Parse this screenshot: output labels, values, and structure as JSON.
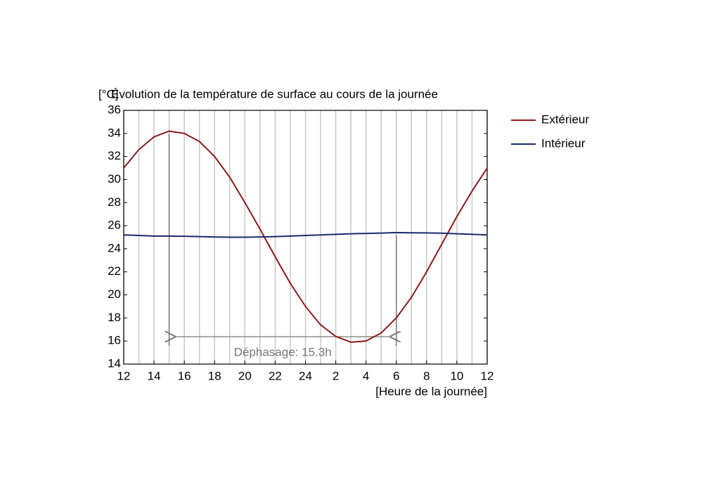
{
  "chart_data": {
    "type": "line",
    "title": "Évolution de la température de surface au cours de la journée",
    "y_label": "[°C]",
    "x_label": "[Heure de la journée]",
    "annotation": "Déphasage: 15.3h",
    "x": [
      12,
      13,
      14,
      15,
      16,
      17,
      18,
      19,
      20,
      21,
      22,
      23,
      24,
      25,
      26,
      27,
      28,
      29,
      30,
      31,
      32,
      33,
      34,
      35,
      36
    ],
    "series": [
      {
        "name": "Extérieur",
        "color": "#8b1a1a",
        "values": [
          31.0,
          32.6,
          33.7,
          34.2,
          34.0,
          33.3,
          32.0,
          30.2,
          28.0,
          25.7,
          23.3,
          21.0,
          19.0,
          17.4,
          16.4,
          15.9,
          16.0,
          16.7,
          18.0,
          19.8,
          22.0,
          24.4,
          26.8,
          29.0,
          31.0
        ]
      },
      {
        "name": "Intérieur",
        "color": "#1a2a6c",
        "values": [
          25.2,
          25.15,
          25.1,
          25.1,
          25.08,
          25.05,
          25.02,
          25.0,
          25.0,
          25.02,
          25.05,
          25.1,
          25.15,
          25.2,
          25.25,
          25.3,
          25.33,
          25.36,
          25.4,
          25.38,
          25.37,
          25.35,
          25.3,
          25.25,
          25.2
        ]
      }
    ],
    "xlim": [
      12,
      36
    ],
    "ylim": [
      14,
      36
    ],
    "xticks": [
      12,
      14,
      16,
      18,
      20,
      22,
      24,
      {
        "value": 26,
        "label": "2"
      },
      {
        "value": 28,
        "label": "4"
      },
      {
        "value": 30,
        "label": "6"
      },
      {
        "value": 32,
        "label": "8"
      },
      {
        "value": 34,
        "label": "10"
      },
      {
        "value": 36,
        "label": "12"
      }
    ],
    "yticks": [
      14,
      16,
      18,
      20,
      22,
      24,
      26,
      28,
      30,
      32,
      34,
      36
    ],
    "grid": true,
    "legend": "right"
  }
}
